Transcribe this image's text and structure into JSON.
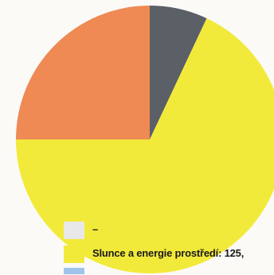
{
  "chart_data": {
    "type": "pie",
    "title": "",
    "slices": [
      {
        "label": "",
        "value": 7,
        "color": "#5b5f66"
      },
      {
        "label": "Slunce a energie prostředí",
        "value": 68,
        "color": "#f2ea3a"
      },
      {
        "label": "",
        "value": 25,
        "color": "#ef8a55"
      }
    ],
    "legend": {
      "placement": "bottom",
      "items": [
        {
          "label": "–",
          "color": "#e8e8e8"
        },
        {
          "label": "Slunce a energie prostředí: 125,",
          "color": "#f2ea3a"
        },
        {
          "label": "",
          "color": "#9fc3ea"
        }
      ]
    }
  }
}
